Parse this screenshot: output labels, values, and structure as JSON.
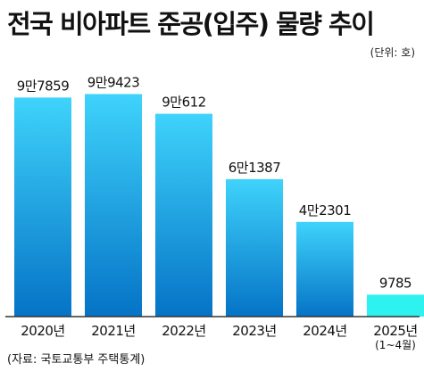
{
  "title": "전국 비아파트 준공(입주) 물량 추이",
  "unit": "(단위: 호)",
  "source": "(자료: 국토교통부 주택통계)",
  "colors": {
    "bar_top": "#3fd3fb",
    "bar_bottom": "#0573c6",
    "last_bar": "#2ef2f0",
    "axis": "#333333"
  },
  "chart_data": {
    "type": "bar",
    "title": "전국 비아파트 준공(입주) 물량 추이",
    "unit_label": "(단위: 호)",
    "categories": [
      "2020년",
      "2021년",
      "2022년",
      "2023년",
      "2024년",
      "2025년"
    ],
    "category_notes": [
      "",
      "",
      "",
      "",
      "",
      "(1~4월)"
    ],
    "values": [
      97859,
      99423,
      90612,
      61387,
      42301,
      9785
    ],
    "value_labels": [
      "9만7859",
      "9만9423",
      "9만612",
      "6만1387",
      "4만2301",
      "9785"
    ],
    "ylim": [
      0,
      100000
    ],
    "grid": false,
    "legend": "none"
  }
}
